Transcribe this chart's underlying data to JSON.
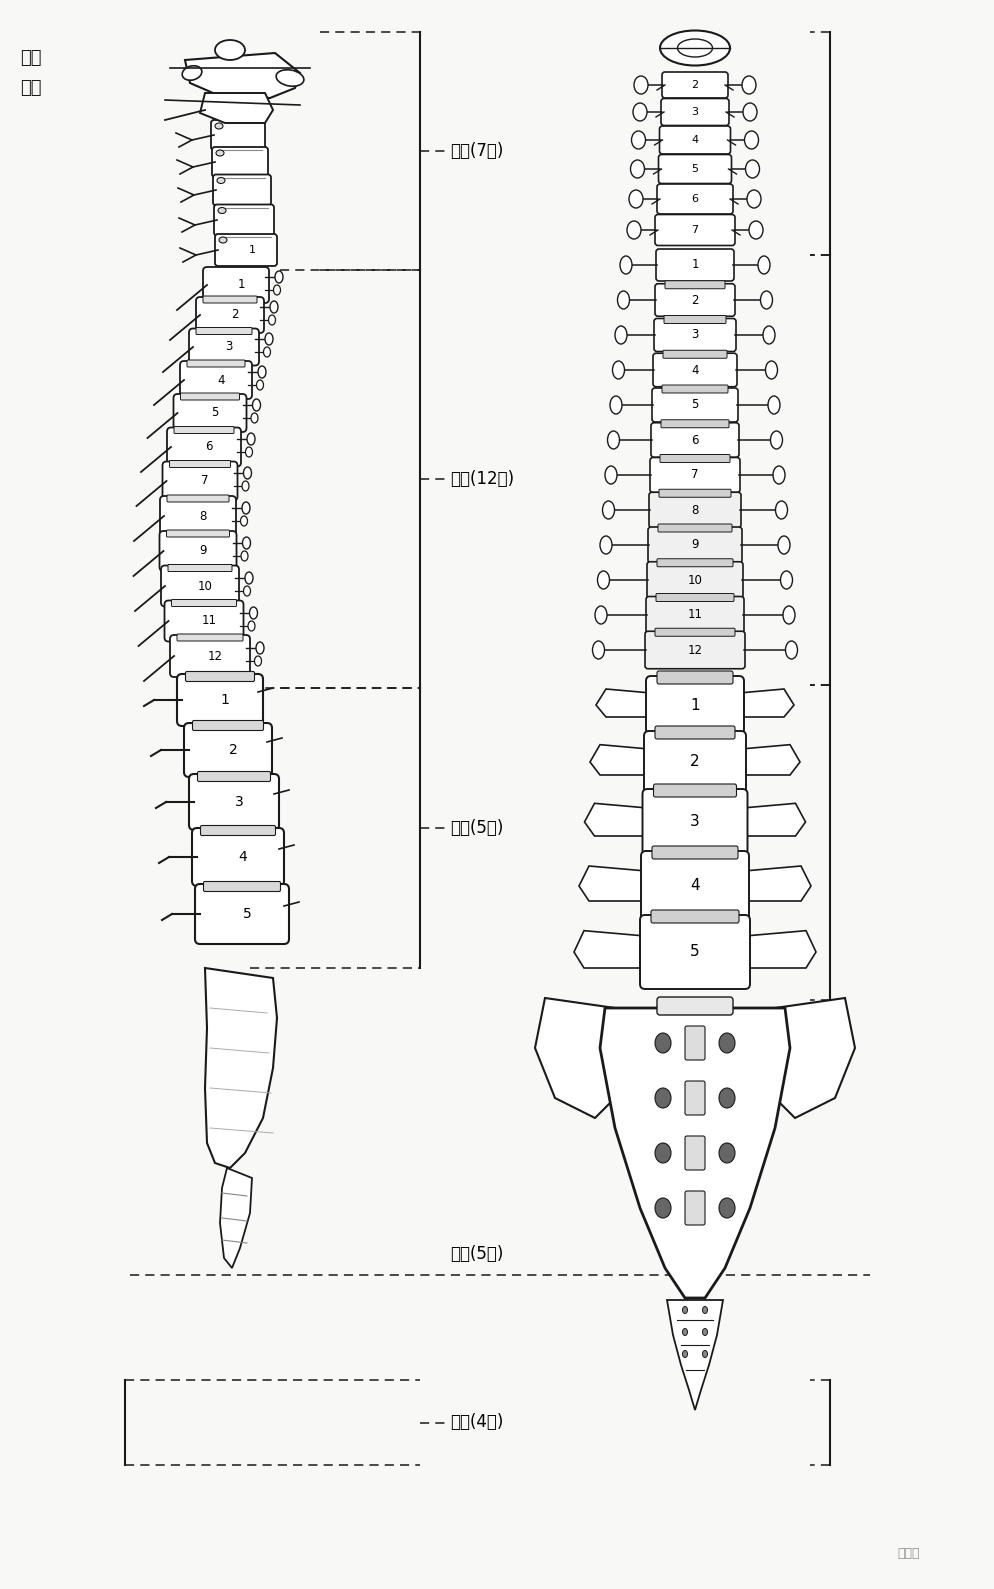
{
  "background_color": "#f5f5f2",
  "fig_width": 9.95,
  "fig_height": 15.89,
  "dpi": 100,
  "labels": {
    "atlas": "寠椰",
    "axis": "枢椰",
    "cervical": "颈椰(7个)",
    "thoracic": "胸椰(12个)",
    "lumbar": "腰椰(5个)",
    "sacral": "骼骨(5个)",
    "coccyx": "尾骨(4个)"
  },
  "watermark": "康复汇",
  "coord": {
    "xlim": [
      0,
      995
    ],
    "ylim": [
      0,
      1589
    ]
  }
}
